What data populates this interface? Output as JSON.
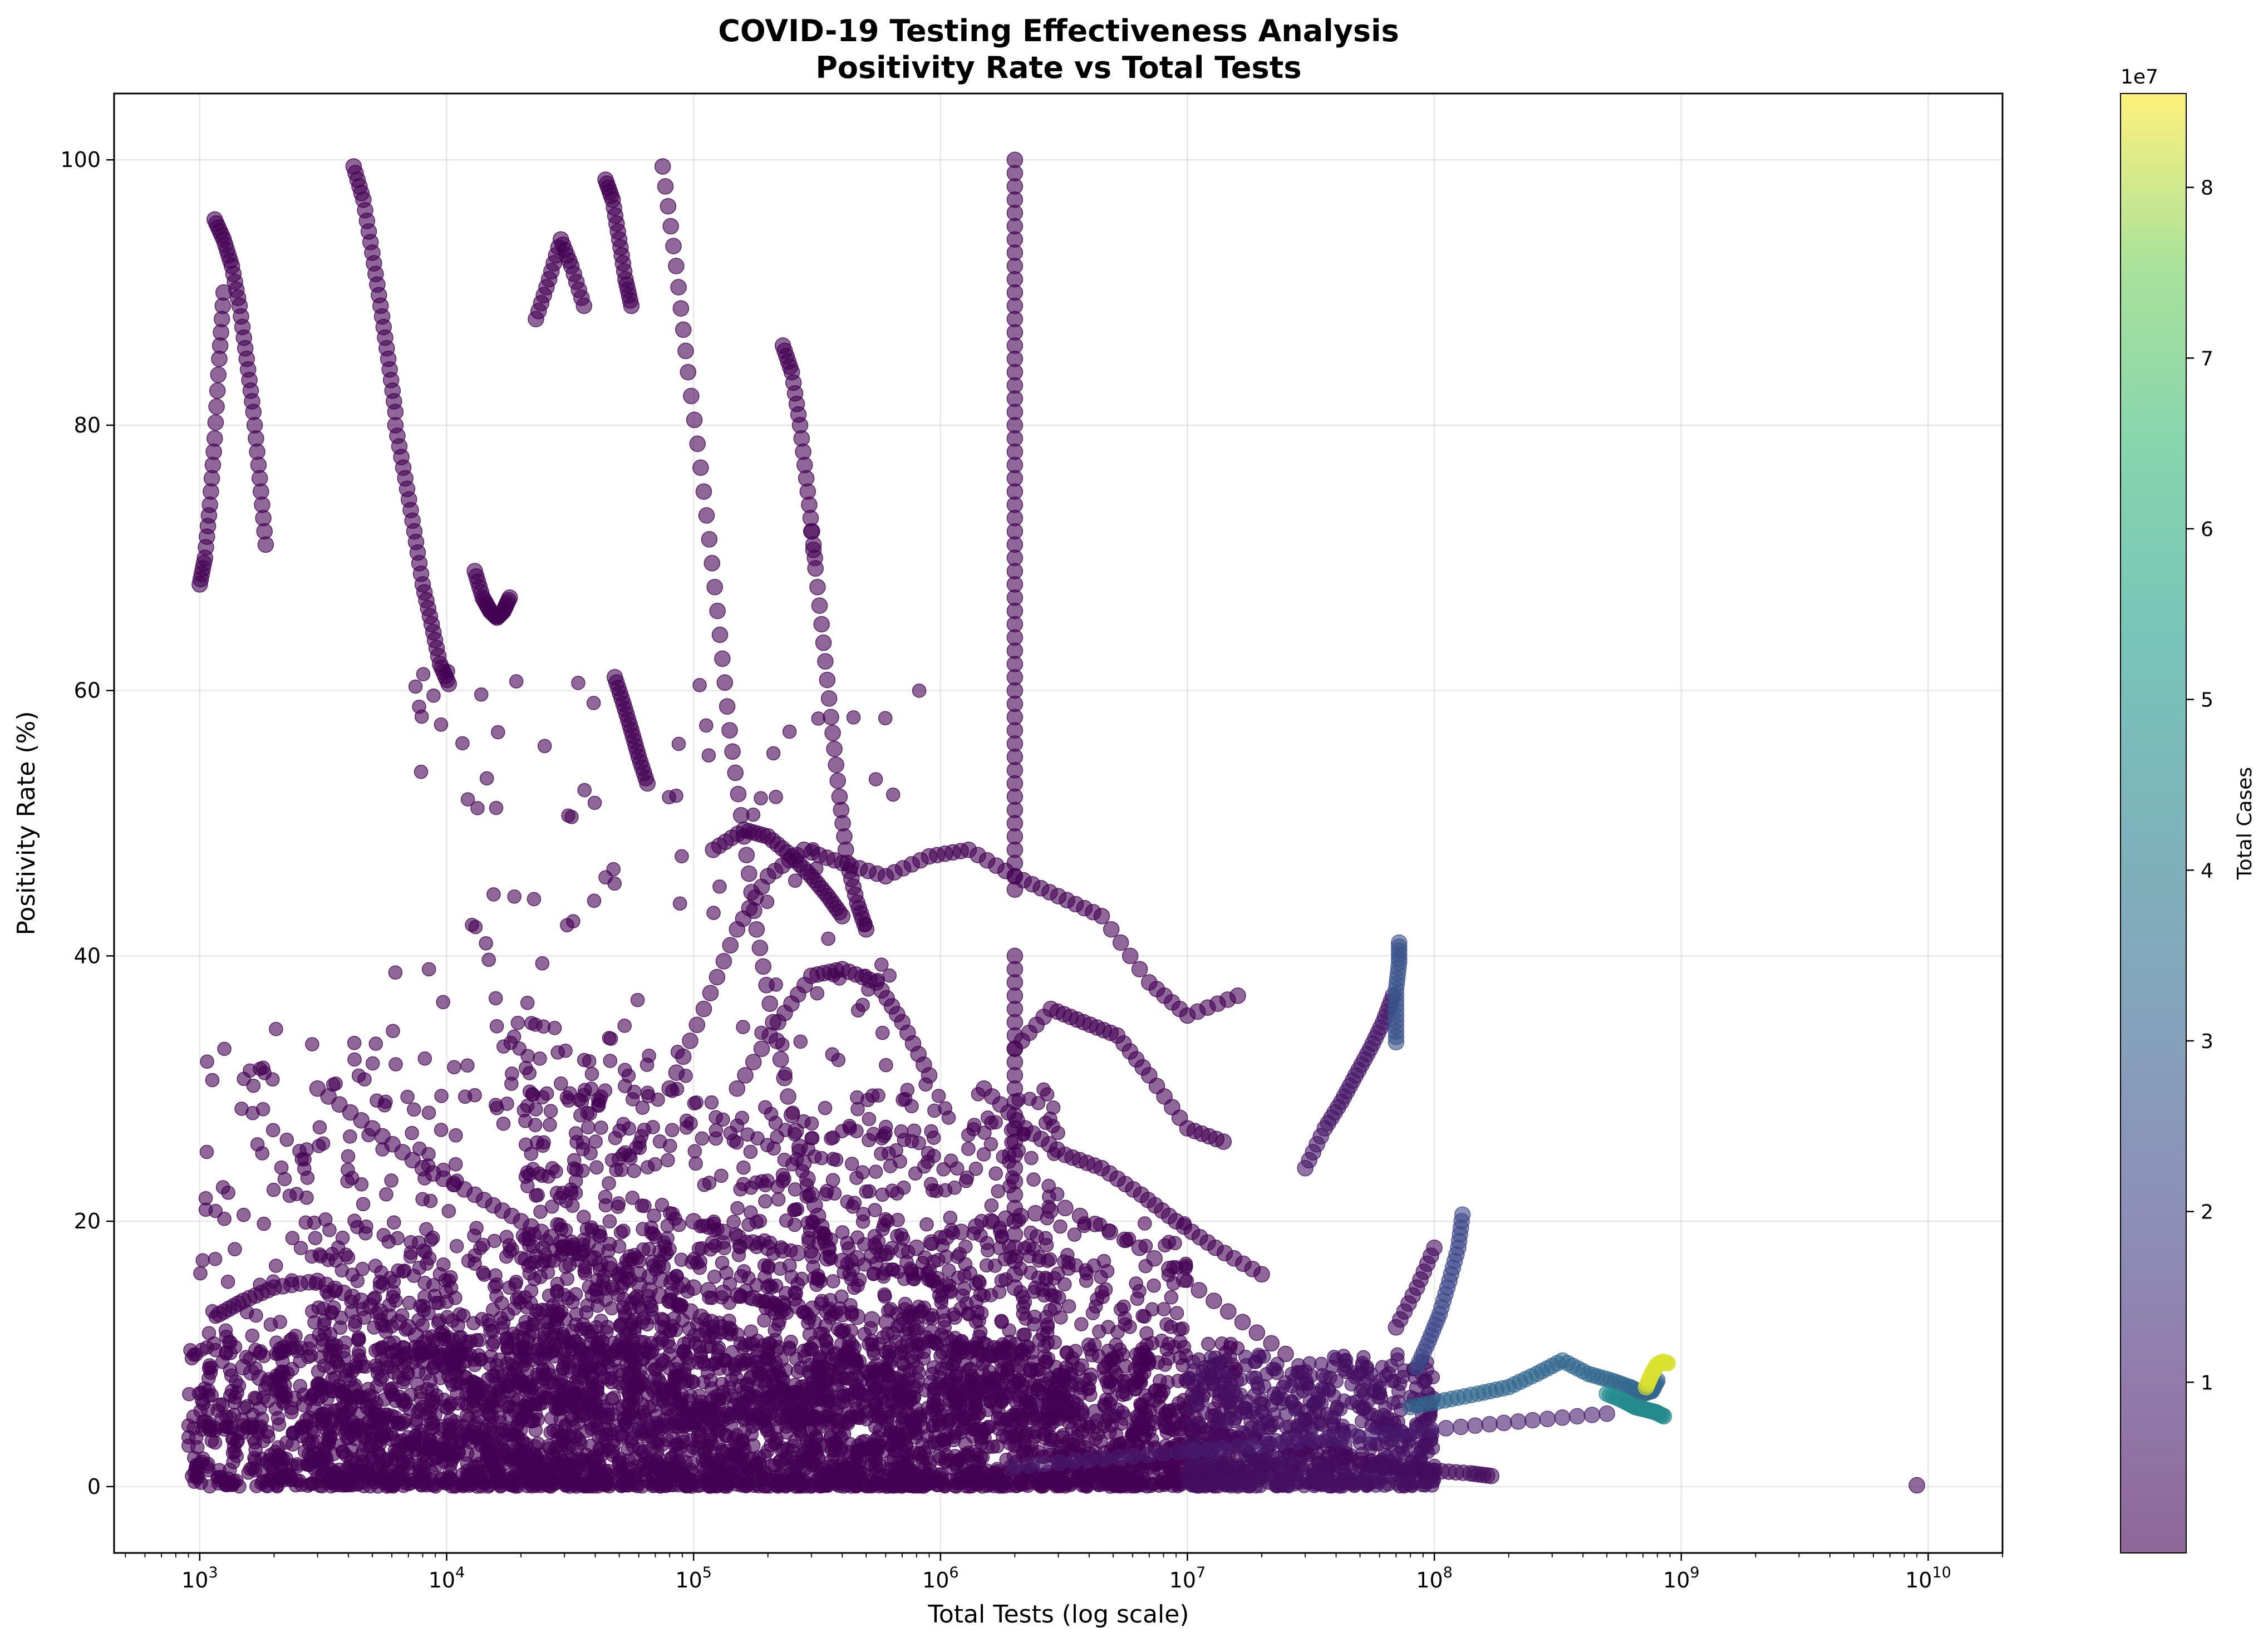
{
  "chart_data": {
    "type": "scatter",
    "title_line1": "COVID-19 Testing Effectiveness Analysis",
    "title_line2": "Positivity Rate vs Total Tests",
    "xlabel": "Total Tests (log scale)",
    "ylabel": "Positivity Rate (%)",
    "x_scale": "log",
    "xlim": [
      450,
      20000000000
    ],
    "ylim": [
      -5,
      105
    ],
    "x_tick_exponents": [
      3,
      4,
      5,
      6,
      7,
      8,
      9,
      10
    ],
    "y_ticks": [
      "0",
      "20",
      "40",
      "60",
      "80",
      "100"
    ],
    "grid": true,
    "colormap": "viridis",
    "marker_alpha": 0.6,
    "colorbar": {
      "label": "Total Cases",
      "multiplier": "1e7",
      "ticks": [
        "1",
        "2",
        "3",
        "4",
        "5",
        "6",
        "7",
        "8"
      ],
      "range": [
        0,
        8.55
      ]
    },
    "series": [
      {
        "x": [
          1150,
          1250,
          1350,
          1450,
          1550,
          1650,
          1750,
          1850
        ],
        "y": [
          95.5,
          94,
          92,
          89,
          85,
          81,
          76,
          71
        ],
        "c": 0.01
      },
      {
        "x": [
          1000,
          1050,
          1100,
          1150,
          1200,
          1250
        ],
        "y": [
          68,
          70,
          74,
          79,
          85,
          90
        ],
        "c": 0.01
      },
      {
        "x": [
          4200,
          4600,
          5000,
          5400,
          5800,
          6200
        ],
        "y": [
          99.5,
          97,
          93,
          89,
          85,
          81
        ],
        "c": 0.01
      },
      {
        "x": [
          6200,
          6800,
          7400,
          8000,
          8700,
          9400,
          10200
        ],
        "y": [
          80,
          76,
          72,
          68,
          65,
          62,
          60.5
        ],
        "c": 0.01
      },
      {
        "x": [
          23000,
          26000,
          29000,
          32000,
          36000
        ],
        "y": [
          88,
          91,
          94,
          92,
          89
        ],
        "c": 0.01
      },
      {
        "x": [
          44000,
          47000,
          50000,
          53000,
          56000
        ],
        "y": [
          98.5,
          97,
          94,
          91,
          89
        ],
        "c": 0.01
      },
      {
        "x": [
          13000,
          14000,
          15000,
          16000,
          17000,
          18000
        ],
        "y": [
          69,
          67,
          66,
          65.5,
          66,
          67
        ],
        "c": 0.01
      },
      {
        "x": [
          230000,
          250000,
          270000,
          290000,
          310000
        ],
        "y": [
          86,
          84,
          80,
          75,
          70
        ],
        "c": 0.01
      },
      {
        "x": [
          300000,
          330000,
          360000,
          390000,
          420000,
          460000,
          500000
        ],
        "y": [
          72,
          65,
          58,
          52,
          47,
          44,
          42
        ],
        "c": 0.01
      },
      {
        "x": [
          48000,
          52000,
          56000,
          60000,
          65000
        ],
        "y": [
          61,
          59,
          57,
          55,
          53
        ],
        "c": 0.01
      },
      {
        "x": [
          75000,
          85000,
          95000,
          110000,
          125000,
          140000,
          160000,
          180000,
          210000,
          250000,
          300000,
          350000
        ],
        "y": [
          99.5,
          92,
          84,
          75,
          66,
          57,
          49,
          42,
          35,
          28,
          22,
          18
        ],
        "c": 0.01
      },
      {
        "x": [
          2000000,
          2000000,
          2000000,
          2000000,
          2000000,
          2000000,
          2000000,
          2000000,
          2000000,
          2000000,
          2000000,
          2000000
        ],
        "y": [
          100,
          95,
          90,
          85,
          80,
          75,
          70,
          65,
          60,
          55,
          50,
          45
        ],
        "c": 0.01
      },
      {
        "x": [
          2000000,
          2000000,
          2000000,
          2000000,
          2000000,
          2000000
        ],
        "y": [
          40,
          35,
          30,
          25,
          20,
          15
        ],
        "c": 0.01
      },
      {
        "x": [
          80000,
          110000,
          150000,
          200000,
          280000,
          400000,
          600000,
          900000,
          1300000,
          2000000,
          3000000,
          4500000,
          7000000,
          10000000,
          16000000
        ],
        "y": [
          30,
          36,
          42,
          46,
          48,
          47,
          46,
          47.5,
          48,
          46,
          44.5,
          43,
          38,
          35.5,
          37
        ],
        "c": 0.01
      },
      {
        "x": [
          120000,
          160000,
          200000,
          250000,
          300000,
          350000,
          400000
        ],
        "y": [
          48,
          49.5,
          49,
          47.5,
          46,
          44.5,
          43
        ],
        "c": 0.01
      },
      {
        "x": [
          150000,
          220000,
          300000,
          400000,
          550000,
          700000,
          900000
        ],
        "y": [
          30,
          35,
          38.5,
          39,
          38,
          35,
          31
        ],
        "c": 0.01
      },
      {
        "x": [
          1500000,
          2200000,
          3200000,
          4500000,
          6500000,
          9000000,
          13000000,
          20000000
        ],
        "y": [
          30,
          27,
          25,
          24,
          22,
          20,
          18,
          16
        ],
        "c": 0.01
      },
      {
        "x": [
          2000000,
          2800000,
          3800000,
          5200000,
          7000000,
          10000000,
          14000000
        ],
        "y": [
          33,
          36,
          35,
          34,
          31,
          27,
          26
        ],
        "c": 0.01
      },
      {
        "x": [
          30000000,
          36000000,
          42000000,
          48000000,
          55000000,
          62000000,
          68000000
        ],
        "y": [
          24,
          27,
          29,
          31,
          33,
          35,
          37
        ],
        "c": 0.6
      },
      {
        "x": [
          70000000,
          70000000,
          70000000,
          72000000,
          72000000
        ],
        "y": [
          33.5,
          35.5,
          37.5,
          39.5,
          41
        ],
        "c": 2.5
      },
      {
        "x": [
          85000000,
          95000000,
          105000000,
          115000000,
          125000000,
          130000000
        ],
        "y": [
          9,
          11,
          13,
          15.5,
          18,
          20.5
        ],
        "c": 2.1
      },
      {
        "x": [
          70000000,
          85000000,
          100000000
        ],
        "y": [
          12,
          15,
          18
        ],
        "c": 0.3
      },
      {
        "x": [
          80000000,
          110000000,
          150000000,
          200000000,
          260000000,
          330000000,
          420000000,
          520000000,
          620000000,
          700000000,
          760000000,
          800000000
        ],
        "y": [
          6,
          6.5,
          7,
          7.5,
          8.5,
          9.5,
          8.5,
          8,
          7.5,
          7,
          7.2,
          8
        ],
        "c": 3.2
      },
      {
        "x": [
          500000000,
          580000000,
          650000000,
          720000000,
          790000000,
          850000000
        ],
        "y": [
          7,
          6.5,
          6,
          5.8,
          5.6,
          5.3
        ],
        "c": 4.6
      },
      {
        "x": [
          720000000,
          760000000,
          800000000,
          840000000,
          880000000
        ],
        "y": [
          7.5,
          8.5,
          9.2,
          9.4,
          9.3
        ],
        "c": 8.3
      },
      {
        "x": [
          9000000000
        ],
        "y": [
          0.1
        ],
        "c": 0.1
      },
      {
        "x": [
          1200,
          1500,
          2000,
          3000,
          4500,
          7000,
          10000,
          15000,
          22000
        ],
        "y": [
          13,
          14,
          15,
          15.5,
          14,
          12,
          9,
          7,
          5
        ],
        "c": 0.01
      },
      {
        "x": [
          1500,
          2200,
          3500,
          5000,
          8000,
          12000,
          20000,
          30000,
          50000
        ],
        "y": [
          9,
          7,
          5,
          4,
          3,
          2.5,
          2,
          1.5,
          1
        ],
        "c": 0.01
      },
      {
        "x": [
          30000,
          60000,
          100000,
          200000,
          400000,
          800000,
          1600000,
          3000000
        ],
        "y": [
          18,
          16,
          15,
          14,
          13,
          12,
          10,
          8
        ],
        "c": 0.01
      },
      {
        "x": [
          50000,
          100000,
          200000,
          400000,
          800000,
          1600000,
          3200000,
          6400000,
          12000000,
          25000000,
          50000000
        ],
        "y": [
          4,
          5,
          6,
          7,
          8,
          7,
          6,
          5,
          4,
          3,
          2
        ],
        "c": 0.05
      },
      {
        "x": [
          100000,
          200000,
          400000,
          800000,
          1600000,
          3200000,
          6400000,
          12800000,
          25000000
        ],
        "y": [
          20,
          18,
          17,
          18,
          20,
          21,
          18,
          14,
          10
        ],
        "c": 0.01
      },
      {
        "x": [
          3000,
          5000,
          8000,
          13000,
          20000,
          32000,
          50000,
          80000,
          130000
        ],
        "y": [
          30,
          27,
          24,
          22,
          20,
          18,
          16,
          14,
          12
        ],
        "c": 0.01
      },
      {
        "x": [
          2000000,
          4000000,
          8000000,
          16000000,
          32000000,
          64000000,
          128000000,
          250000000,
          500000000
        ],
        "y": [
          1.5,
          2,
          2.5,
          3,
          3.5,
          4,
          4.5,
          5,
          5.5
        ],
        "c": 0.8
      },
      {
        "x": [
          10000000,
          20000000,
          40000000,
          70000000,
          100000000,
          140000000,
          170000000
        ],
        "y": [
          1,
          1.5,
          1.8,
          1.5,
          1.2,
          1,
          0.8
        ],
        "c": 0.3
      }
    ],
    "background_clusters": [
      {
        "x_range": [
          900,
          16000000
        ],
        "y_range": [
          0,
          11
        ],
        "count": 2400,
        "c": 0.01
      },
      {
        "x_range": [
          3000,
          10000000
        ],
        "y_range": [
          0,
          20
        ],
        "count": 1400,
        "c": 0.01
      },
      {
        "x_range": [
          20000,
          3000000
        ],
        "y_range": [
          5,
          30
        ],
        "count": 900,
        "c": 0.01
      },
      {
        "x_range": [
          1000,
          60000
        ],
        "y_range": [
          10,
          35
        ],
        "count": 350,
        "c": 0.01
      },
      {
        "x_range": [
          5000,
          1000000
        ],
        "y_range": [
          25,
          62
        ],
        "count": 140,
        "c": 0.01
      },
      {
        "x_range": [
          10000000,
          100000000
        ],
        "y_range": [
          0,
          10
        ],
        "count": 700,
        "c": 0.4
      }
    ]
  }
}
